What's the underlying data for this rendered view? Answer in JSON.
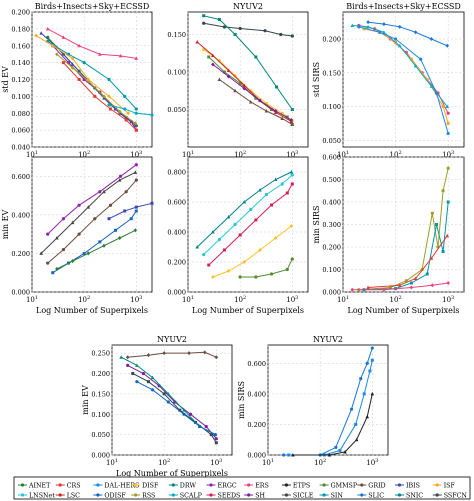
{
  "figure": {
    "caption_xlabel": "Log Number of Superpixels",
    "legend_entries": [
      "AINET",
      "CRS",
      "DAL-HERS",
      "DISF",
      "DRW",
      "ERGC",
      "ERS",
      "ETPS",
      "GMMSP",
      "GRID",
      "IBIS",
      "ISF",
      "LNSNet",
      "LSC",
      "ODISF",
      "RSS",
      "SCALP",
      "SEEDS",
      "SH",
      "SICLE",
      "SIN",
      "SLIC",
      "SNIC",
      "SSFCN"
    ],
    "legend_colors": [
      "#2e7d32",
      "#e53935",
      "#1e88e5",
      "#fbc02d",
      "#00897b",
      "#8e24aa",
      "#ec407a",
      "#212121",
      "#558b2f",
      "#6d4c41",
      "#3949ab",
      "#f9a825",
      "#26c6da",
      "#c62828",
      "#1565c0",
      "#9e9d24",
      "#00acc1",
      "#d81b60",
      "#7b1fa2",
      "#424242",
      "#0097a7",
      "#1976d2",
      "#00838f",
      "#37474f"
    ]
  },
  "chart_data": [
    {
      "id": "p1",
      "type": "line",
      "title": "Birds+Insects+Sky+ECSSD",
      "ylabel": "std EV",
      "xlabel": "",
      "xscale": "log",
      "xlim": [
        10,
        2000
      ],
      "ylim": [
        0.04,
        0.2
      ],
      "yticks": [
        "0.040",
        "0.060",
        "0.080",
        "0.100",
        "0.120",
        "0.140",
        "0.160",
        "0.180",
        "0.200"
      ],
      "xticks": [
        "10^1",
        "10^2",
        "10^3"
      ],
      "series": [
        {
          "x": [
            20,
            40,
            80,
            160,
            320,
            640,
            1000
          ],
          "y": [
            0.17,
            0.15,
            0.13,
            0.11,
            0.09,
            0.075,
            0.065
          ]
        },
        {
          "x": [
            25,
            50,
            100,
            200,
            400,
            800,
            1000
          ],
          "y": [
            0.16,
            0.14,
            0.12,
            0.105,
            0.085,
            0.07,
            0.06
          ]
        },
        {
          "x": [
            15,
            30,
            60,
            120,
            240,
            480,
            960
          ],
          "y": [
            0.175,
            0.158,
            0.138,
            0.118,
            0.098,
            0.08,
            0.066
          ]
        },
        {
          "x": [
            30,
            60,
            120,
            240,
            480,
            960
          ],
          "y": [
            0.15,
            0.134,
            0.118,
            0.1,
            0.082,
            0.068
          ]
        },
        {
          "x": [
            20,
            50,
            100,
            300,
            600,
            1000
          ],
          "y": [
            0.165,
            0.15,
            0.14,
            0.12,
            0.1,
            0.085
          ]
        },
        {
          "x": [
            40,
            80,
            160,
            320,
            640,
            1000
          ],
          "y": [
            0.14,
            0.12,
            0.1,
            0.085,
            0.072,
            0.06
          ]
        },
        {
          "x": [
            20,
            40,
            80,
            200,
            500,
            1000
          ],
          "y": [
            0.18,
            0.17,
            0.16,
            0.15,
            0.148,
            0.145
          ]
        },
        {
          "x": [
            12,
            25,
            60,
            120,
            300,
            700
          ],
          "y": [
            0.172,
            0.16,
            0.145,
            0.12,
            0.1,
            0.08
          ]
        },
        {
          "x": [
            300,
            600,
            1000,
            2000
          ],
          "y": [
            0.09,
            0.085,
            0.08,
            0.078
          ]
        }
      ]
    },
    {
      "id": "p2",
      "type": "line",
      "title": "NYUV2",
      "ylabel": "",
      "xlabel": "",
      "xscale": "log",
      "xlim": [
        10,
        2000
      ],
      "ylim": [
        0.0,
        0.18
      ],
      "yticks": [
        "0.050",
        "0.100",
        "0.150"
      ],
      "xticks": [
        "10^1",
        "10^2",
        "10^3"
      ],
      "series": [
        {
          "x": [
            20,
            40,
            80,
            160,
            320,
            640,
            1000
          ],
          "y": [
            0.13,
            0.115,
            0.095,
            0.075,
            0.058,
            0.045,
            0.035
          ]
        },
        {
          "x": [
            25,
            50,
            100,
            200,
            400,
            800,
            1000
          ],
          "y": [
            0.12,
            0.1,
            0.085,
            0.065,
            0.05,
            0.04,
            0.03
          ]
        },
        {
          "x": [
            15,
            30,
            60,
            120,
            240,
            480,
            960
          ],
          "y": [
            0.14,
            0.122,
            0.102,
            0.082,
            0.062,
            0.046,
            0.034
          ]
        },
        {
          "x": [
            30,
            60,
            120,
            240,
            480,
            960
          ],
          "y": [
            0.11,
            0.094,
            0.078,
            0.062,
            0.048,
            0.036
          ]
        },
        {
          "x": [
            20,
            50,
            100,
            300,
            600,
            1000
          ],
          "y": [
            0.165,
            0.16,
            0.158,
            0.155,
            0.15,
            0.148
          ]
        },
        {
          "x": [
            20,
            40,
            80,
            200,
            500,
            1000
          ],
          "y": [
            0.175,
            0.17,
            0.15,
            0.12,
            0.08,
            0.05
          ]
        },
        {
          "x": [
            40,
            80,
            160,
            320,
            640,
            1000
          ],
          "y": [
            0.09,
            0.075,
            0.06,
            0.048,
            0.038,
            0.03
          ]
        }
      ]
    },
    {
      "id": "p3",
      "type": "line",
      "title": "Birds+Insects+Sky+ECSSD",
      "ylabel": "std SIRS",
      "xlabel": "",
      "xscale": "log",
      "xlim": [
        10,
        2000
      ],
      "ylim": [
        0.04,
        0.24
      ],
      "yticks": [
        "0.050",
        "0.100",
        "0.150",
        "0.200"
      ],
      "xticks": [
        "10^1",
        "10^2",
        "10^3"
      ],
      "series": [
        {
          "x": [
            20,
            40,
            80,
            160,
            320,
            640,
            1000
          ],
          "y": [
            0.22,
            0.215,
            0.2,
            0.18,
            0.15,
            0.12,
            0.09
          ]
        },
        {
          "x": [
            25,
            50,
            100,
            200,
            400,
            800,
            1000
          ],
          "y": [
            0.215,
            0.21,
            0.195,
            0.17,
            0.14,
            0.1,
            0.075
          ]
        },
        {
          "x": [
            15,
            30,
            60,
            120,
            240,
            480,
            960
          ],
          "y": [
            0.22,
            0.218,
            0.21,
            0.19,
            0.16,
            0.13,
            0.1
          ]
        },
        {
          "x": [
            30,
            60,
            120,
            240,
            480,
            960
          ],
          "y": [
            0.225,
            0.222,
            0.218,
            0.21,
            0.2,
            0.19
          ]
        },
        {
          "x": [
            20,
            50,
            100,
            300,
            600,
            1000
          ],
          "y": [
            0.218,
            0.21,
            0.2,
            0.17,
            0.12,
            0.06
          ]
        }
      ]
    },
    {
      "id": "p4",
      "type": "line",
      "title": "",
      "ylabel": "min EV",
      "xlabel": "Log Number of Superpixels",
      "xscale": "log",
      "xlim": [
        10,
        2000
      ],
      "ylim": [
        0.0,
        0.7
      ],
      "yticks": [
        "0.000",
        "0.200",
        "0.400",
        "0.600"
      ],
      "xticks": [
        "10^1",
        "10^2",
        "10^3"
      ],
      "series": [
        {
          "x": [
            20,
            40,
            80,
            160,
            320,
            640,
            1000
          ],
          "y": [
            0.15,
            0.22,
            0.3,
            0.38,
            0.45,
            0.52,
            0.58
          ]
        },
        {
          "x": [
            25,
            50,
            100,
            200,
            400,
            800,
            1000
          ],
          "y": [
            0.1,
            0.15,
            0.2,
            0.26,
            0.32,
            0.38,
            0.42
          ]
        },
        {
          "x": [
            15,
            30,
            60,
            120,
            240,
            480,
            960
          ],
          "y": [
            0.2,
            0.28,
            0.36,
            0.44,
            0.52,
            0.58,
            0.62
          ]
        },
        {
          "x": [
            30,
            60,
            120,
            240,
            480,
            960
          ],
          "y": [
            0.12,
            0.16,
            0.2,
            0.24,
            0.28,
            0.32
          ]
        },
        {
          "x": [
            20,
            40,
            80,
            200,
            500,
            1000
          ],
          "y": [
            0.3,
            0.38,
            0.45,
            0.52,
            0.6,
            0.66
          ]
        },
        {
          "x": [
            300,
            600,
            1000,
            2000
          ],
          "y": [
            0.38,
            0.42,
            0.44,
            0.46
          ]
        }
      ]
    },
    {
      "id": "p5",
      "type": "line",
      "title": "",
      "ylabel": "",
      "xlabel": "Log Number of Superpixels",
      "xscale": "log",
      "xlim": [
        10,
        2000
      ],
      "ylim": [
        0.0,
        0.9
      ],
      "yticks": [
        "0.000",
        "0.200",
        "0.400",
        "0.600",
        "0.800"
      ],
      "xticks": [
        "10^1",
        "10^2",
        "10^3"
      ],
      "series": [
        {
          "x": [
            20,
            40,
            80,
            160,
            320,
            640,
            1000
          ],
          "y": [
            0.25,
            0.35,
            0.45,
            0.55,
            0.65,
            0.72,
            0.78
          ]
        },
        {
          "x": [
            25,
            50,
            100,
            200,
            400,
            800,
            1000
          ],
          "y": [
            0.18,
            0.28,
            0.38,
            0.48,
            0.58,
            0.66,
            0.72
          ]
        },
        {
          "x": [
            15,
            30,
            60,
            120,
            240,
            480,
            960
          ],
          "y": [
            0.3,
            0.4,
            0.5,
            0.6,
            0.68,
            0.75,
            0.8
          ]
        },
        {
          "x": [
            30,
            60,
            120,
            240,
            480,
            960
          ],
          "y": [
            0.1,
            0.14,
            0.2,
            0.28,
            0.36,
            0.44
          ]
        },
        {
          "x": [
            100,
            200,
            400,
            800,
            1000
          ],
          "y": [
            0.1,
            0.1,
            0.12,
            0.15,
            0.22
          ]
        }
      ]
    },
    {
      "id": "p6",
      "type": "line",
      "title": "",
      "ylabel": "min SIRS",
      "xlabel": "Log Number of Superpixels",
      "xscale": "log",
      "xlim": [
        10,
        2000
      ],
      "ylim": [
        0.0,
        0.6
      ],
      "yticks": [
        "0.000",
        "0.100",
        "0.200",
        "0.300",
        "0.400",
        "0.500",
        "0.600"
      ],
      "xticks": [
        "10^1",
        "10^2",
        "10^3"
      ],
      "series": [
        {
          "x": [
            20,
            80,
            160,
            320,
            500,
            640,
            800,
            1000
          ],
          "y": [
            0.01,
            0.02,
            0.05,
            0.1,
            0.35,
            0.2,
            0.45,
            0.55
          ]
        },
        {
          "x": [
            25,
            100,
            200,
            400,
            600,
            800,
            1000
          ],
          "y": [
            0.01,
            0.015,
            0.04,
            0.08,
            0.3,
            0.18,
            0.4
          ]
        },
        {
          "x": [
            30,
            120,
            240,
            480,
            960
          ],
          "y": [
            0.02,
            0.03,
            0.06,
            0.15,
            0.25
          ]
        },
        {
          "x": [
            15,
            60,
            200,
            500,
            1000
          ],
          "y": [
            0.01,
            0.01,
            0.02,
            0.03,
            0.04
          ]
        }
      ]
    },
    {
      "id": "p7",
      "type": "line",
      "title": "NYUV2",
      "ylabel": "min EV",
      "xlabel": "Log Number of Superpixels",
      "xscale": "log",
      "xlim": [
        10,
        2000
      ],
      "ylim": [
        0.0,
        0.27
      ],
      "yticks": [
        "0.000",
        "0.050",
        "0.100",
        "0.150",
        "0.200",
        "0.250"
      ],
      "xticks": [
        "10^1",
        "10^2",
        "10^3"
      ],
      "series": [
        {
          "x": [
            20,
            40,
            80,
            160,
            320,
            640,
            1000
          ],
          "y": [
            0.22,
            0.2,
            0.17,
            0.13,
            0.1,
            0.07,
            0.04
          ]
        },
        {
          "x": [
            25,
            50,
            100,
            200,
            400,
            800,
            1000
          ],
          "y": [
            0.2,
            0.18,
            0.15,
            0.11,
            0.08,
            0.05,
            0.03
          ]
        },
        {
          "x": [
            15,
            30,
            60,
            120,
            240,
            480,
            960
          ],
          "y": [
            0.24,
            0.22,
            0.19,
            0.15,
            0.11,
            0.07,
            0.05
          ]
        },
        {
          "x": [
            20,
            50,
            100,
            300,
            600,
            1000
          ],
          "y": [
            0.24,
            0.245,
            0.25,
            0.25,
            0.252,
            0.24
          ]
        },
        {
          "x": [
            30,
            60,
            120,
            240,
            480,
            960
          ],
          "y": [
            0.18,
            0.16,
            0.13,
            0.1,
            0.07,
            0.05
          ]
        }
      ]
    },
    {
      "id": "p8",
      "type": "line",
      "title": "NYUV2",
      "ylabel": "min SIRS",
      "xlabel": "",
      "xscale": "log",
      "xlim": [
        10,
        2000
      ],
      "ylim": [
        0.0,
        0.72
      ],
      "yticks": [
        "0.000",
        "0.200",
        "0.400",
        "0.600"
      ],
      "xticks": [
        "10^1",
        "10^2",
        "10^3"
      ],
      "series": [
        {
          "x": [
            20,
            100,
            200,
            400,
            600,
            800,
            1000
          ],
          "y": [
            0.0,
            0.0,
            0.05,
            0.3,
            0.5,
            0.6,
            0.7
          ]
        },
        {
          "x": [
            25,
            120,
            240,
            480,
            700,
            900,
            1000
          ],
          "y": [
            0.0,
            0.0,
            0.03,
            0.2,
            0.4,
            0.55,
            0.62
          ]
        },
        {
          "x": [
            30,
            150,
            300,
            500,
            800,
            1000
          ],
          "y": [
            0.0,
            0.0,
            0.02,
            0.1,
            0.25,
            0.4
          ]
        }
      ]
    }
  ]
}
